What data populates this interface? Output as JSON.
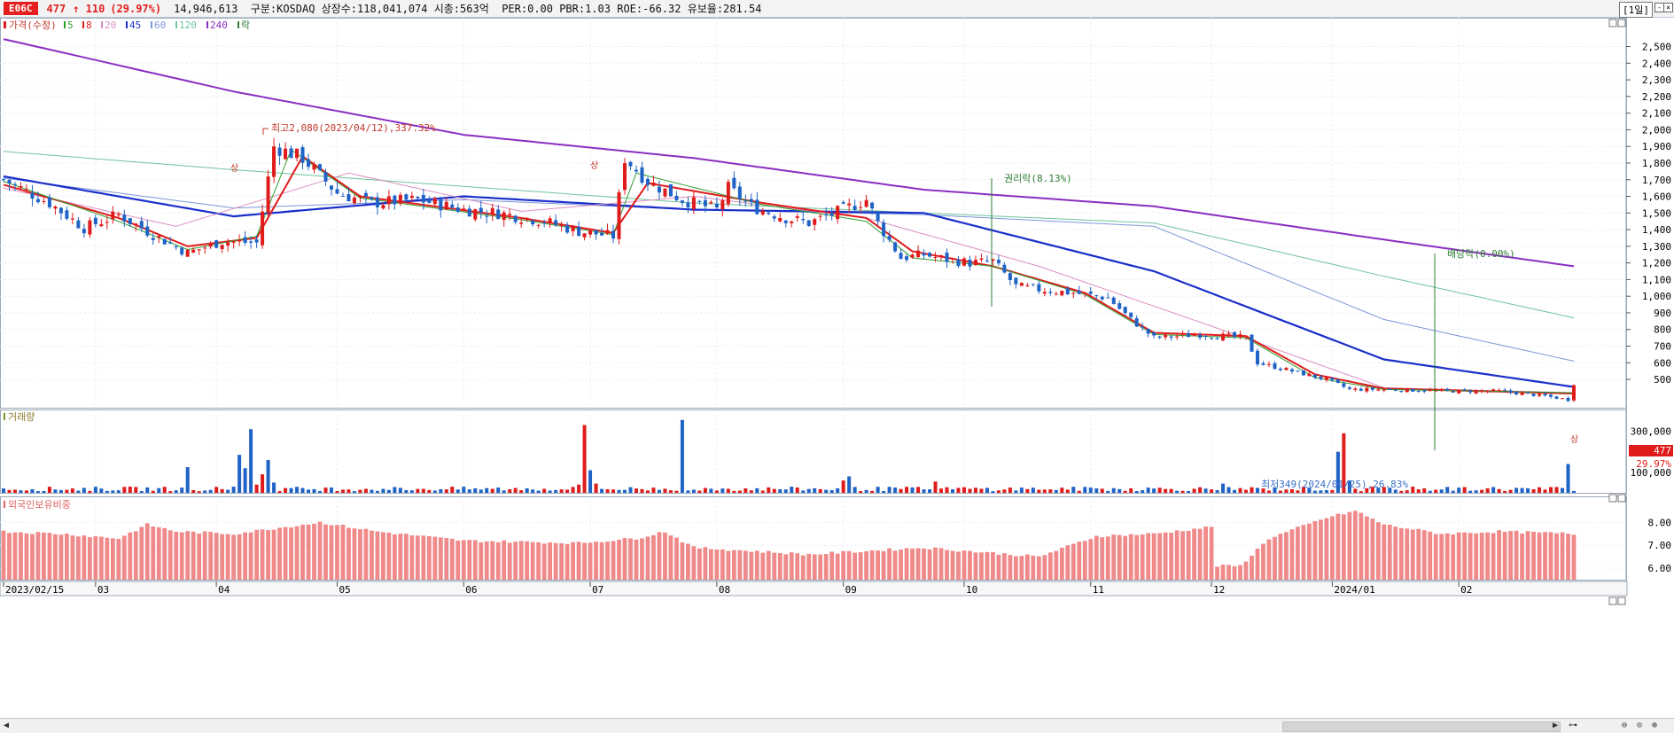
{
  "header": {
    "code": "E06C",
    "price": "477",
    "change": "↑ 110",
    "change_pct": "(29.97%)",
    "info": "14,946,613  구분:KOSDAQ 상장수:118,041,074 시총:563억  PER:0.00 PBR:1.03 ROE:-66.32 유보율:281.54",
    "period": "[1일]"
  },
  "legend": {
    "price_label": "가격(수정)",
    "ma": [
      {
        "label": "5",
        "color": "#2e9e2e"
      },
      {
        "label": "8",
        "color": "#e01b1b"
      },
      {
        "label": "20",
        "color": "#d98fc0"
      },
      {
        "label": "45",
        "color": "#1a2fc9"
      },
      {
        "label": "60",
        "color": "#7c96d6"
      },
      {
        "label": "120",
        "color": "#6fc49a"
      },
      {
        "label": "240",
        "color": "#8a2fc2"
      }
    ],
    "event_label": "락"
  },
  "panels": {
    "volume_title": "거래량",
    "foreign_title": "외국인보유비중"
  },
  "annotations": {
    "high": "최고2,080(2023/04/12),337.32%",
    "low": "최저349(2024/01/25),26.83%",
    "rights": "권리락(8.13%)",
    "dividend": "배당락(0.00%)",
    "limit_up": "상",
    "last_price": "477",
    "last_pct": "29.97%"
  },
  "colors": {
    "up": "#e01b1b",
    "down": "#1f63c6",
    "foreign": "#f08a8a"
  },
  "chart_data": [
    {
      "type": "candlestick",
      "title": "가격(수정)",
      "x": [
        "2023/02/15",
        "03",
        "04",
        "05",
        "06",
        "07",
        "08",
        "09",
        "10",
        "11",
        "12",
        "2024/01",
        "02"
      ],
      "y_ticks": [
        500,
        600,
        700,
        800,
        900,
        1000,
        1100,
        1200,
        1300,
        1400,
        1500,
        1600,
        1700,
        1800,
        1900,
        2000,
        2100,
        2200,
        2300,
        2400,
        2500
      ],
      "y_tick_labels": [
        "500",
        "600",
        "700",
        "800",
        "900",
        "1,000",
        "1,100",
        "1,200",
        "1,300",
        "1,400",
        "1,500",
        "1,600",
        "1,700",
        "1,800",
        "1,900",
        "2,000",
        "2,100",
        "2,200",
        "2,300",
        "2,400",
        "2,500"
      ],
      "ylim": [
        330,
        2620
      ],
      "close_path": [
        [
          0,
          1700
        ],
        [
          8,
          1560
        ],
        [
          14,
          1410
        ],
        [
          20,
          1490
        ],
        [
          26,
          1370
        ],
        [
          32,
          1260
        ],
        [
          38,
          1330
        ],
        [
          44,
          1320
        ],
        [
          47,
          1900
        ],
        [
          52,
          1830
        ],
        [
          58,
          1620
        ],
        [
          64,
          1560
        ],
        [
          72,
          1580
        ],
        [
          80,
          1520
        ],
        [
          86,
          1500
        ],
        [
          94,
          1450
        ],
        [
          100,
          1390
        ],
        [
          106,
          1360
        ],
        [
          108,
          1830
        ],
        [
          112,
          1690
        ],
        [
          118,
          1580
        ],
        [
          124,
          1520
        ],
        [
          126,
          1650
        ],
        [
          130,
          1540
        ],
        [
          136,
          1470
        ],
        [
          140,
          1440
        ],
        [
          146,
          1520
        ],
        [
          150,
          1580
        ],
        [
          152,
          1440
        ],
        [
          156,
          1230
        ],
        [
          160,
          1250
        ],
        [
          164,
          1220
        ],
        [
          168,
          1200
        ],
        [
          172,
          1210
        ],
        [
          176,
          1060
        ],
        [
          180,
          1040
        ],
        [
          186,
          1020
        ],
        [
          192,
          990
        ],
        [
          196,
          860
        ],
        [
          200,
          750
        ],
        [
          208,
          770
        ],
        [
          216,
          750
        ],
        [
          218,
          600
        ],
        [
          224,
          550
        ],
        [
          230,
          500
        ],
        [
          234,
          440
        ],
        [
          240,
          440
        ],
        [
          250,
          430
        ],
        [
          260,
          430
        ],
        [
          268,
          400
        ],
        [
          272,
          378
        ],
        [
          273,
          477
        ]
      ],
      "series": [
        {
          "name": "240",
          "values": [
            [
              0,
              2545
            ],
            [
              40,
              2230
            ],
            [
              80,
              1970
            ],
            [
              120,
              1830
            ],
            [
              160,
              1640
            ],
            [
              200,
              1540
            ],
            [
              240,
              1340
            ],
            [
              273,
              1180
            ]
          ]
        },
        {
          "name": "120",
          "values": [
            [
              0,
              1870
            ],
            [
              40,
              1760
            ],
            [
              80,
              1660
            ],
            [
              120,
              1560
            ],
            [
              160,
              1500
            ],
            [
              200,
              1440
            ],
            [
              240,
              1120
            ],
            [
              273,
              870
            ]
          ]
        },
        {
          "name": "60",
          "values": [
            [
              0,
              1710
            ],
            [
              40,
              1530
            ],
            [
              80,
              1580
            ],
            [
              120,
              1520
            ],
            [
              160,
              1490
            ],
            [
              200,
              1420
            ],
            [
              240,
              860
            ],
            [
              273,
              610
            ]
          ]
        },
        {
          "name": "45",
          "values": [
            [
              0,
              1720
            ],
            [
              40,
              1480
            ],
            [
              80,
              1600
            ],
            [
              120,
              1520
            ],
            [
              160,
              1500
            ],
            [
              200,
              1150
            ],
            [
              240,
              620
            ],
            [
              273,
              455
            ]
          ]
        },
        {
          "name": "20",
          "values": [
            [
              0,
              1650
            ],
            [
              30,
              1420
            ],
            [
              60,
              1740
            ],
            [
              90,
              1510
            ],
            [
              120,
              1600
            ],
            [
              150,
              1470
            ],
            [
              180,
              1180
            ],
            [
              210,
              820
            ],
            [
              240,
              450
            ],
            [
              273,
              420
            ]
          ]
        },
        {
          "name": "8",
          "values": [
            [
              0,
              1670
            ],
            [
              20,
              1470
            ],
            [
              32,
              1300
            ],
            [
              44,
              1350
            ],
            [
              52,
              1840
            ],
            [
              62,
              1600
            ],
            [
              90,
              1470
            ],
            [
              106,
              1380
            ],
            [
              112,
              1680
            ],
            [
              132,
              1560
            ],
            [
              150,
              1470
            ],
            [
              158,
              1270
            ],
            [
              172,
              1180
            ],
            [
              188,
              1020
            ],
            [
              200,
              780
            ],
            [
              216,
              760
            ],
            [
              228,
              530
            ],
            [
              240,
              445
            ],
            [
              273,
              415
            ]
          ]
        },
        {
          "name": "5",
          "values": [
            [
              0,
              1690
            ],
            [
              20,
              1450
            ],
            [
              32,
              1280
            ],
            [
              44,
              1360
            ],
            [
              50,
              1880
            ],
            [
              62,
              1590
            ],
            [
              90,
              1460
            ],
            [
              106,
              1370
            ],
            [
              110,
              1740
            ],
            [
              132,
              1550
            ],
            [
              150,
              1450
            ],
            [
              158,
              1230
            ],
            [
              172,
              1180
            ],
            [
              188,
              1010
            ],
            [
              200,
              770
            ],
            [
              216,
              750
            ],
            [
              228,
              510
            ],
            [
              240,
              440
            ],
            [
              273,
              420
            ]
          ]
        }
      ]
    },
    {
      "type": "bar",
      "title": "거래량",
      "y_ticks": [
        100000,
        200000,
        300000
      ],
      "y_tick_labels": [
        "100,000",
        "200,000",
        "300,000"
      ],
      "ylim": [
        0,
        380000
      ],
      "spikes": [
        [
          32,
          125000
        ],
        [
          40,
          30000
        ],
        [
          41,
          185000
        ],
        [
          42,
          120000
        ],
        [
          43,
          310000
        ],
        [
          44,
          40000
        ],
        [
          45,
          90000
        ],
        [
          46,
          160000
        ],
        [
          47,
          50000
        ],
        [
          100,
          40000
        ],
        [
          101,
          330000
        ],
        [
          102,
          110000
        ],
        [
          103,
          45000
        ],
        [
          118,
          355000
        ],
        [
          146,
          60000
        ],
        [
          147,
          80000
        ],
        [
          162,
          55000
        ],
        [
          212,
          45000
        ],
        [
          232,
          200000
        ],
        [
          233,
          290000
        ],
        [
          234,
          60000
        ],
        [
          272,
          140000
        ]
      ]
    },
    {
      "type": "bar",
      "title": "외국인보유비중",
      "y_ticks": [
        6.0,
        7.0,
        8.0
      ],
      "y_tick_labels": [
        "6.00",
        "7.00",
        "8.00"
      ],
      "ylim": [
        5.5,
        8.9
      ],
      "profile": [
        [
          0,
          7.6
        ],
        [
          10,
          7.5
        ],
        [
          20,
          7.3
        ],
        [
          25,
          7.9
        ],
        [
          30,
          7.6
        ],
        [
          40,
          7.5
        ],
        [
          55,
          8.0
        ],
        [
          65,
          7.6
        ],
        [
          80,
          7.2
        ],
        [
          100,
          7.1
        ],
        [
          110,
          7.3
        ],
        [
          115,
          7.6
        ],
        [
          120,
          6.9
        ],
        [
          140,
          6.6
        ],
        [
          160,
          6.9
        ],
        [
          180,
          6.5
        ],
        [
          190,
          7.4
        ],
        [
          200,
          7.5
        ],
        [
          210,
          7.8
        ],
        [
          211,
          6.1
        ],
        [
          215,
          6.1
        ],
        [
          220,
          7.3
        ],
        [
          230,
          8.2
        ],
        [
          235,
          8.5
        ],
        [
          240,
          7.9
        ],
        [
          250,
          7.5
        ],
        [
          260,
          7.6
        ],
        [
          273,
          7.5
        ]
      ]
    }
  ]
}
